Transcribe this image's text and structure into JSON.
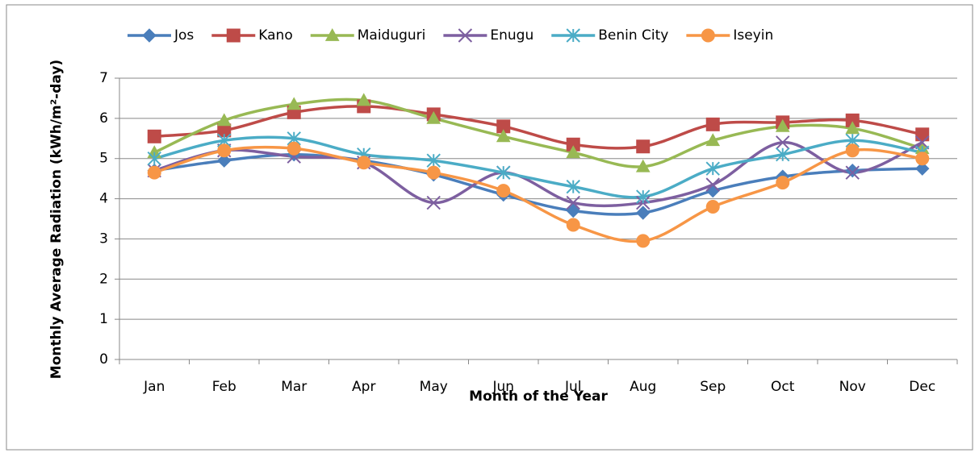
{
  "chart_data": {
    "type": "line",
    "xlabel": "Month of the Year",
    "ylabel": "Monthly Average Radiation (kWh/m²-day)",
    "categories": [
      "Jan",
      "Feb",
      "Mar",
      "Apr",
      "May",
      "Jun",
      "Jul",
      "Aug",
      "Sep",
      "Oct",
      "Nov",
      "Dec"
    ],
    "series": [
      {
        "name": "Jos",
        "color": "#4a7ebb",
        "marker": "diamond",
        "values": [
          4.7,
          4.95,
          5.1,
          4.95,
          4.6,
          4.1,
          3.7,
          3.65,
          4.2,
          4.55,
          4.7,
          4.75
        ]
      },
      {
        "name": "Kano",
        "color": "#be4b48",
        "marker": "square",
        "values": [
          5.55,
          5.7,
          6.15,
          6.3,
          6.1,
          5.8,
          5.35,
          5.3,
          5.85,
          5.9,
          5.95,
          5.6
        ]
      },
      {
        "name": "Maiduguri",
        "color": "#98b954",
        "marker": "triangle",
        "values": [
          5.15,
          5.95,
          6.35,
          6.45,
          6.0,
          5.55,
          5.15,
          4.8,
          5.45,
          5.8,
          5.75,
          5.25
        ]
      },
      {
        "name": "Enugu",
        "color": "#7d5fa0",
        "marker": "x",
        "values": [
          4.7,
          5.2,
          5.05,
          4.9,
          3.9,
          4.65,
          3.9,
          3.9,
          4.35,
          5.4,
          4.65,
          5.4
        ]
      },
      {
        "name": "Benin City",
        "color": "#4bacc6",
        "marker": "asterisk",
        "values": [
          5.0,
          5.45,
          5.5,
          5.1,
          4.95,
          4.65,
          4.3,
          4.05,
          4.75,
          5.1,
          5.45,
          5.15
        ]
      },
      {
        "name": "Iseyin",
        "color": "#f79646",
        "marker": "circle",
        "values": [
          4.65,
          5.2,
          5.25,
          4.9,
          4.65,
          4.2,
          3.35,
          2.95,
          3.8,
          4.4,
          5.2,
          5.0
        ]
      }
    ],
    "ylim": [
      0,
      7
    ],
    "yticks": [
      0,
      1,
      2,
      3,
      4,
      5,
      6,
      7
    ],
    "grid": true,
    "smooth": true,
    "legend": "top"
  }
}
